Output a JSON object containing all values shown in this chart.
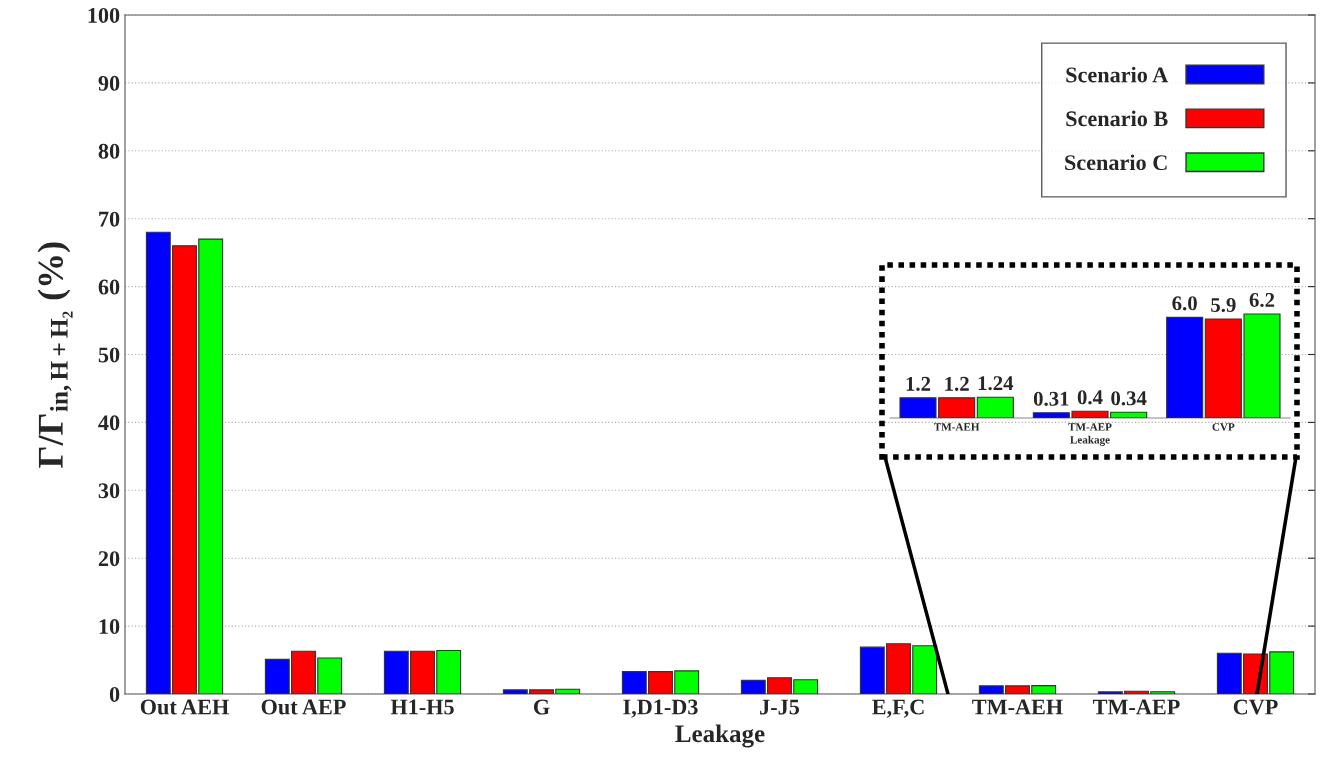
{
  "chart_data": [
    {
      "type": "bar",
      "xlabel": "Leakage",
      "ylabel": "Γ/Γ$_{in,H+H₂}$ (%)",
      "categories": [
        "Out AEH",
        "Out AEP",
        "H1-H5",
        "G",
        "I,D1-D3",
        "J-J5",
        "E,F,C",
        "TM-AEH",
        "TM-AEP",
        "CVP"
      ],
      "series": [
        {
          "name": "Scenario A",
          "color": "#0000ff",
          "values": [
            68.0,
            5.1,
            6.3,
            0.6,
            3.3,
            2.0,
            6.9,
            1.2,
            0.31,
            6.0
          ]
        },
        {
          "name": "Scenario B",
          "color": "#ff0000",
          "values": [
            66.0,
            6.3,
            6.3,
            0.6,
            3.3,
            2.4,
            7.4,
            1.2,
            0.4,
            5.9
          ]
        },
        {
          "name": "Scenario C",
          "color": "#00ff00",
          "values": [
            67.0,
            5.3,
            6.4,
            0.7,
            3.4,
            2.1,
            7.1,
            1.24,
            0.34,
            6.2
          ]
        }
      ],
      "ylim": [
        0,
        100
      ],
      "yticks": [
        0,
        10,
        20,
        30,
        40,
        50,
        60,
        70,
        80,
        90,
        100
      ],
      "grid": "y",
      "legend": "top right"
    },
    {
      "type": "bar",
      "xlabel": "Leakage",
      "categories": [
        "TM-AEH",
        "TM-AEP",
        "CVP"
      ],
      "series": [
        {
          "color": "#0000ff",
          "values": [
            1.2,
            0.31,
            6.0
          ],
          "value_labels": [
            "1.2",
            "0.31",
            "6.0"
          ]
        },
        {
          "color": "#ff0000",
          "values": [
            1.2,
            0.4,
            5.9
          ],
          "value_labels": [
            "1.2",
            "0.4",
            "5.9"
          ]
        },
        {
          "color": "#00ff00",
          "values": [
            1.24,
            0.34,
            6.2
          ],
          "value_labels": [
            "1.24",
            "0.34",
            "6.2"
          ]
        }
      ],
      "tick_labels": "x"
    }
  ]
}
